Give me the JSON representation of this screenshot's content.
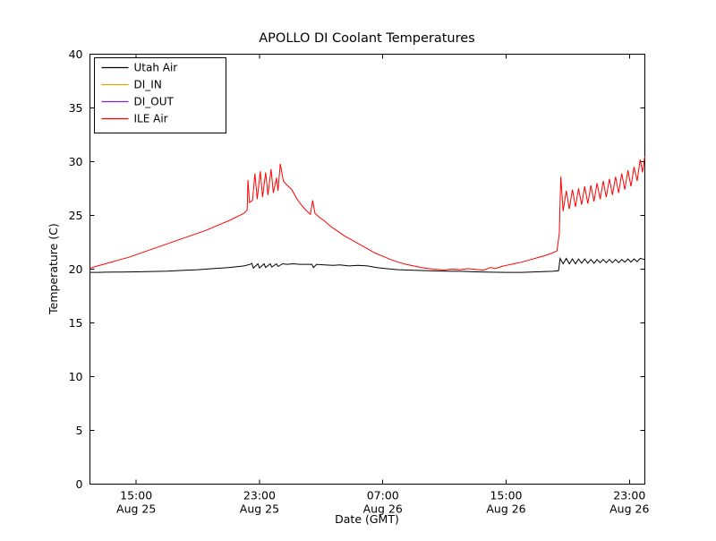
{
  "chart_data": {
    "type": "line",
    "title": "APOLLO DI Coolant Temperatures",
    "xlabel": "Date (GMT)",
    "ylabel": "Temperature (C)",
    "ylim": [
      0,
      40
    ],
    "yticks": [
      0,
      5,
      10,
      15,
      20,
      25,
      30,
      35,
      40
    ],
    "x_unit": "hours since Aug 25 12:00 GMT",
    "xlim": [
      0,
      36
    ],
    "xticks": [
      {
        "t": 3,
        "time": "15:00",
        "date": "Aug 25"
      },
      {
        "t": 11,
        "time": "23:00",
        "date": "Aug 25"
      },
      {
        "t": 19,
        "time": "07:00",
        "date": "Aug 26"
      },
      {
        "t": 27,
        "time": "15:00",
        "date": "Aug 26"
      },
      {
        "t": 35,
        "time": "23:00",
        "date": "Aug 26"
      }
    ],
    "grid": false,
    "legend_position": "upper left",
    "series": [
      {
        "name": "Utah Air",
        "color": "#000000",
        "points": [
          [
            0,
            19.7
          ],
          [
            0.5,
            19.7
          ],
          [
            1,
            19.72
          ],
          [
            2,
            19.73
          ],
          [
            3,
            19.75
          ],
          [
            4,
            19.78
          ],
          [
            5,
            19.82
          ],
          [
            6,
            19.88
          ],
          [
            7,
            19.95
          ],
          [
            8,
            20.05
          ],
          [
            9,
            20.15
          ],
          [
            10,
            20.3
          ],
          [
            10.4,
            20.45
          ],
          [
            10.5,
            20.55
          ],
          [
            10.6,
            20.1
          ],
          [
            10.9,
            20.5
          ],
          [
            11.0,
            20.1
          ],
          [
            11.3,
            20.5
          ],
          [
            11.4,
            20.15
          ],
          [
            11.7,
            20.5
          ],
          [
            11.8,
            20.2
          ],
          [
            12.1,
            20.5
          ],
          [
            12.2,
            20.25
          ],
          [
            12.5,
            20.5
          ],
          [
            12.8,
            20.45
          ],
          [
            13.2,
            20.5
          ],
          [
            13.6,
            20.45
          ],
          [
            14.0,
            20.45
          ],
          [
            14.4,
            20.45
          ],
          [
            14.5,
            20.15
          ],
          [
            14.7,
            20.45
          ],
          [
            15.2,
            20.4
          ],
          [
            15.8,
            20.35
          ],
          [
            16.2,
            20.4
          ],
          [
            16.8,
            20.3
          ],
          [
            17.4,
            20.35
          ],
          [
            18,
            20.3
          ],
          [
            18.6,
            20.15
          ],
          [
            19.2,
            20.05
          ],
          [
            20,
            19.95
          ],
          [
            21,
            19.9
          ],
          [
            22,
            19.85
          ],
          [
            23,
            19.82
          ],
          [
            24,
            19.8
          ],
          [
            25,
            19.75
          ],
          [
            26,
            19.72
          ],
          [
            27,
            19.7
          ],
          [
            28,
            19.7
          ],
          [
            29,
            19.75
          ],
          [
            30,
            19.8
          ],
          [
            30.4,
            19.85
          ],
          [
            30.5,
            21.0
          ],
          [
            30.7,
            20.5
          ],
          [
            30.9,
            21.0
          ],
          [
            31.1,
            20.5
          ],
          [
            31.3,
            20.95
          ],
          [
            31.5,
            20.5
          ],
          [
            31.7,
            20.95
          ],
          [
            31.9,
            20.55
          ],
          [
            32.1,
            20.95
          ],
          [
            32.3,
            20.55
          ],
          [
            32.5,
            20.9
          ],
          [
            32.7,
            20.55
          ],
          [
            32.9,
            20.9
          ],
          [
            33.1,
            20.6
          ],
          [
            33.3,
            20.9
          ],
          [
            33.5,
            20.6
          ],
          [
            33.7,
            20.9
          ],
          [
            33.9,
            20.6
          ],
          [
            34.1,
            20.9
          ],
          [
            34.3,
            20.6
          ],
          [
            34.5,
            20.9
          ],
          [
            34.7,
            20.65
          ],
          [
            34.9,
            20.95
          ],
          [
            35.1,
            20.65
          ],
          [
            35.3,
            20.95
          ],
          [
            35.5,
            20.7
          ],
          [
            35.7,
            21.0
          ],
          [
            36,
            20.9
          ]
        ]
      },
      {
        "name": "DI_IN",
        "color": "#ddaa00",
        "points": []
      },
      {
        "name": "DI_OUT",
        "color": "#7d26cd",
        "points": []
      },
      {
        "name": "ILE Air",
        "color": "#ff0000",
        "points": [
          [
            0,
            20.1
          ],
          [
            0.5,
            20.3
          ],
          [
            1,
            20.5
          ],
          [
            1.5,
            20.7
          ],
          [
            2,
            20.9
          ],
          [
            2.5,
            21.1
          ],
          [
            3,
            21.35
          ],
          [
            3.5,
            21.6
          ],
          [
            4,
            21.85
          ],
          [
            4.5,
            22.1
          ],
          [
            5,
            22.35
          ],
          [
            5.5,
            22.6
          ],
          [
            6,
            22.85
          ],
          [
            6.5,
            23.1
          ],
          [
            7,
            23.35
          ],
          [
            7.5,
            23.6
          ],
          [
            8,
            23.9
          ],
          [
            8.5,
            24.2
          ],
          [
            9,
            24.5
          ],
          [
            9.5,
            24.85
          ],
          [
            10,
            25.2
          ],
          [
            10.2,
            25.5
          ],
          [
            10.25,
            28.3
          ],
          [
            10.35,
            26.2
          ],
          [
            10.55,
            26.4
          ],
          [
            10.7,
            28.9
          ],
          [
            10.85,
            26.5
          ],
          [
            11.05,
            29.1
          ],
          [
            11.2,
            26.7
          ],
          [
            11.4,
            29.0
          ],
          [
            11.55,
            26.9
          ],
          [
            11.75,
            29.3
          ],
          [
            11.9,
            27.1
          ],
          [
            12.1,
            28.5
          ],
          [
            12.2,
            27.3
          ],
          [
            12.35,
            29.8
          ],
          [
            12.55,
            28.2
          ],
          [
            12.8,
            27.8
          ],
          [
            13.1,
            27.4
          ],
          [
            13.4,
            26.6
          ],
          [
            13.7,
            26.0
          ],
          [
            14.0,
            25.5
          ],
          [
            14.3,
            25.1
          ],
          [
            14.45,
            26.4
          ],
          [
            14.6,
            25.2
          ],
          [
            14.9,
            24.8
          ],
          [
            15.2,
            24.5
          ],
          [
            15.6,
            24.0
          ],
          [
            16,
            23.6
          ],
          [
            16.5,
            23.1
          ],
          [
            17,
            22.7
          ],
          [
            17.5,
            22.3
          ],
          [
            18,
            21.9
          ],
          [
            18.5,
            21.5
          ],
          [
            19,
            21.2
          ],
          [
            19.5,
            20.9
          ],
          [
            20,
            20.65
          ],
          [
            20.5,
            20.45
          ],
          [
            21,
            20.3
          ],
          [
            21.5,
            20.15
          ],
          [
            22,
            20.05
          ],
          [
            22.5,
            19.98
          ],
          [
            23,
            19.92
          ],
          [
            23.5,
            20.02
          ],
          [
            24,
            19.95
          ],
          [
            24.5,
            20.05
          ],
          [
            25,
            19.98
          ],
          [
            25.5,
            19.9
          ],
          [
            26,
            20.15
          ],
          [
            26.3,
            20.05
          ],
          [
            26.7,
            20.25
          ],
          [
            27,
            20.35
          ],
          [
            27.5,
            20.5
          ],
          [
            28,
            20.65
          ],
          [
            28.5,
            20.85
          ],
          [
            29,
            21.05
          ],
          [
            29.5,
            21.25
          ],
          [
            30,
            21.5
          ],
          [
            30.3,
            21.7
          ],
          [
            30.45,
            23.3
          ],
          [
            30.55,
            28.6
          ],
          [
            30.7,
            25.4
          ],
          [
            30.9,
            27.3
          ],
          [
            31.1,
            25.6
          ],
          [
            31.3,
            27.4
          ],
          [
            31.5,
            25.8
          ],
          [
            31.7,
            27.5
          ],
          [
            31.9,
            26.0
          ],
          [
            32.1,
            27.7
          ],
          [
            32.3,
            26.1
          ],
          [
            32.5,
            27.8
          ],
          [
            32.7,
            26.3
          ],
          [
            32.9,
            28.0
          ],
          [
            33.1,
            26.5
          ],
          [
            33.3,
            28.2
          ],
          [
            33.5,
            26.7
          ],
          [
            33.7,
            28.4
          ],
          [
            33.9,
            26.9
          ],
          [
            34.1,
            28.6
          ],
          [
            34.3,
            27.1
          ],
          [
            34.5,
            28.9
          ],
          [
            34.7,
            27.4
          ],
          [
            34.9,
            29.2
          ],
          [
            35.1,
            27.7
          ],
          [
            35.3,
            29.5
          ],
          [
            35.5,
            28.2
          ],
          [
            35.7,
            30.2
          ],
          [
            35.85,
            29.0
          ],
          [
            36,
            30.5
          ]
        ]
      }
    ]
  }
}
